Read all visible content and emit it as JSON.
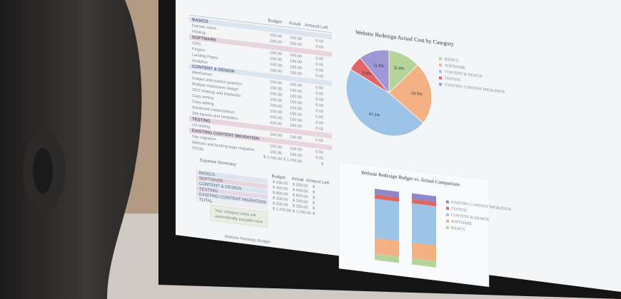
{
  "sheet": {
    "headers": [
      "Budget",
      "Actual",
      "Amount Left"
    ],
    "rows": [
      [
        "BASICS",
        "",
        "",
        ""
      ],
      [
        "Domain name",
        "100.00",
        "100.00",
        "0.00"
      ],
      [
        "Hosting",
        "100.00",
        "100.00",
        "0.00"
      ],
      [
        "SOFTWARE",
        "",
        "",
        ""
      ],
      [
        "CMS",
        "100.00",
        "100.00",
        "0.00"
      ],
      [
        "Plugins",
        "100.00",
        "100.00",
        "0.00"
      ],
      [
        "Landing Pages",
        "100.00",
        "100.00",
        "0.00"
      ],
      [
        "Analytics",
        "100.00",
        "100.00",
        "0.00"
      ],
      [
        "CONTENT & DESIGN",
        "",
        "",
        ""
      ],
      [
        "Wireframes",
        "100.00",
        "100.00",
        "0.00"
      ],
      [
        "Images and custom graphics",
        "100.00",
        "100.00",
        "0.00"
      ],
      [
        "Multiple responsive design",
        "100.00",
        "100.00",
        "0.00"
      ],
      [
        "SEO strategy and keywords",
        "100.00",
        "100.00",
        "0.00"
      ],
      [
        "Copy writing",
        "100.00",
        "100.00",
        "0.00"
      ],
      [
        "Copy editing",
        "100.00",
        "100.00",
        "0.00"
      ],
      [
        "Advanced customization",
        "100.00",
        "100.00",
        "0.00"
      ],
      [
        "Site layouts and templates",
        "100.00",
        "100.00",
        "0.00"
      ],
      [
        "TESTING",
        "",
        "",
        ""
      ],
      [
        "UX testing",
        "100.00",
        "100.00",
        "0.00"
      ],
      [
        "EXISTING CONTENT MIGRATION",
        "",
        "",
        ""
      ],
      [
        "Site migration",
        "100.00",
        "100.00",
        "0.00"
      ],
      [
        "Website and landing page migration",
        "100.00",
        "100.00",
        "0.00"
      ],
      [
        "TOTAL",
        "$ 1,700.00",
        "$ 1,700.00",
        "$"
      ]
    ],
    "summary_title": "Expense Summary",
    "summary_headers": [
      "Budget",
      "Actual",
      "Amount Left"
    ],
    "summary_rows": [
      [
        "BASICS",
        "$ 200.00",
        "$ 200.00",
        "$"
      ],
      [
        "SOFTWARE",
        "$ 400.00",
        "$ 400.00",
        "$"
      ],
      [
        "CONTENT & DESIGN",
        "$ 800.00",
        "$ 800.00",
        "$"
      ],
      [
        "TESTING",
        "$ 100.00",
        "$ 100.00",
        "$"
      ],
      [
        "EXISTING CONTENT MIGRATION",
        "$ 200.00",
        "$ 200.00",
        "$"
      ],
      [
        "TOTAL",
        "$ 1,700.00",
        "$ 1,700.00",
        "$"
      ]
    ],
    "note": [
      "Your category totals will",
      "automatically populate here"
    ],
    "tab": "Website Redesign Budget"
  },
  "pie": {
    "title": "Website Redesign Actual Cost by Category",
    "values": [
      11.8,
      23.5,
      47.1,
      5.9,
      11.8
    ],
    "value_labels": [
      "11.8%",
      "23.5%",
      "47.1%",
      "5.9%",
      "11.8%"
    ],
    "colors": [
      "#b5d49a",
      "#f4b183",
      "#9dc3e6",
      "#e06666",
      "#9e98d6"
    ],
    "legend": [
      "BASICS",
      "SOFTWARE",
      "CONTENT & DESIGN",
      "TESTING",
      "EXISTING CONTENT MIGRATION"
    ]
  },
  "bars": {
    "title": "Website Redesign Budget vs. Actual Comparison",
    "legend": [
      "EXISTING CONTENT MIGRATION",
      "TESTING",
      "CONTENT & DESIGN",
      "SOFTWARE",
      "BASICS"
    ]
  }
}
